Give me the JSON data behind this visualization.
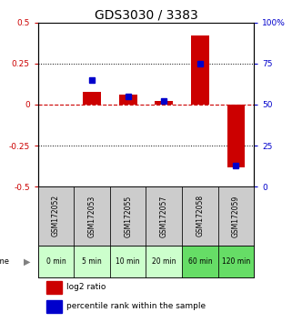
{
  "title": "GDS3030 / 3383",
  "samples": [
    "GSM172052",
    "GSM172053",
    "GSM172055",
    "GSM172057",
    "GSM172058",
    "GSM172059"
  ],
  "time_labels": [
    "0 min",
    "5 min",
    "10 min",
    "20 min",
    "60 min",
    "120 min"
  ],
  "log2_ratio": [
    0.0,
    0.08,
    0.06,
    0.02,
    0.42,
    -0.38
  ],
  "percentile_rank": [
    null,
    65,
    55,
    52,
    75,
    13
  ],
  "ylim_left": [
    -0.5,
    0.5
  ],
  "ylim_right": [
    0,
    100
  ],
  "yticks_left": [
    -0.5,
    -0.25,
    0.0,
    0.25,
    0.5
  ],
  "yticks_right": [
    0,
    25,
    50,
    75,
    100
  ],
  "ytick_labels_left": [
    "-0.5",
    "-0.25",
    "0",
    "0.25",
    "0.5"
  ],
  "ytick_labels_right": [
    "0",
    "25",
    "50",
    "75",
    "100%"
  ],
  "bar_color_red": "#cc0000",
  "bar_color_blue": "#0000cc",
  "zero_line_color": "#cc0000",
  "bg_plot": "#ffffff",
  "bg_sample_gray": "#cccccc",
  "bg_time_green": [
    "#ccffcc",
    "#ccffcc",
    "#ccffcc",
    "#ccffcc",
    "#66dd66",
    "#66dd66"
  ],
  "title_fontsize": 10,
  "legend_red_label": "log2 ratio",
  "legend_blue_label": "percentile rank within the sample",
  "bar_width": 0.5
}
